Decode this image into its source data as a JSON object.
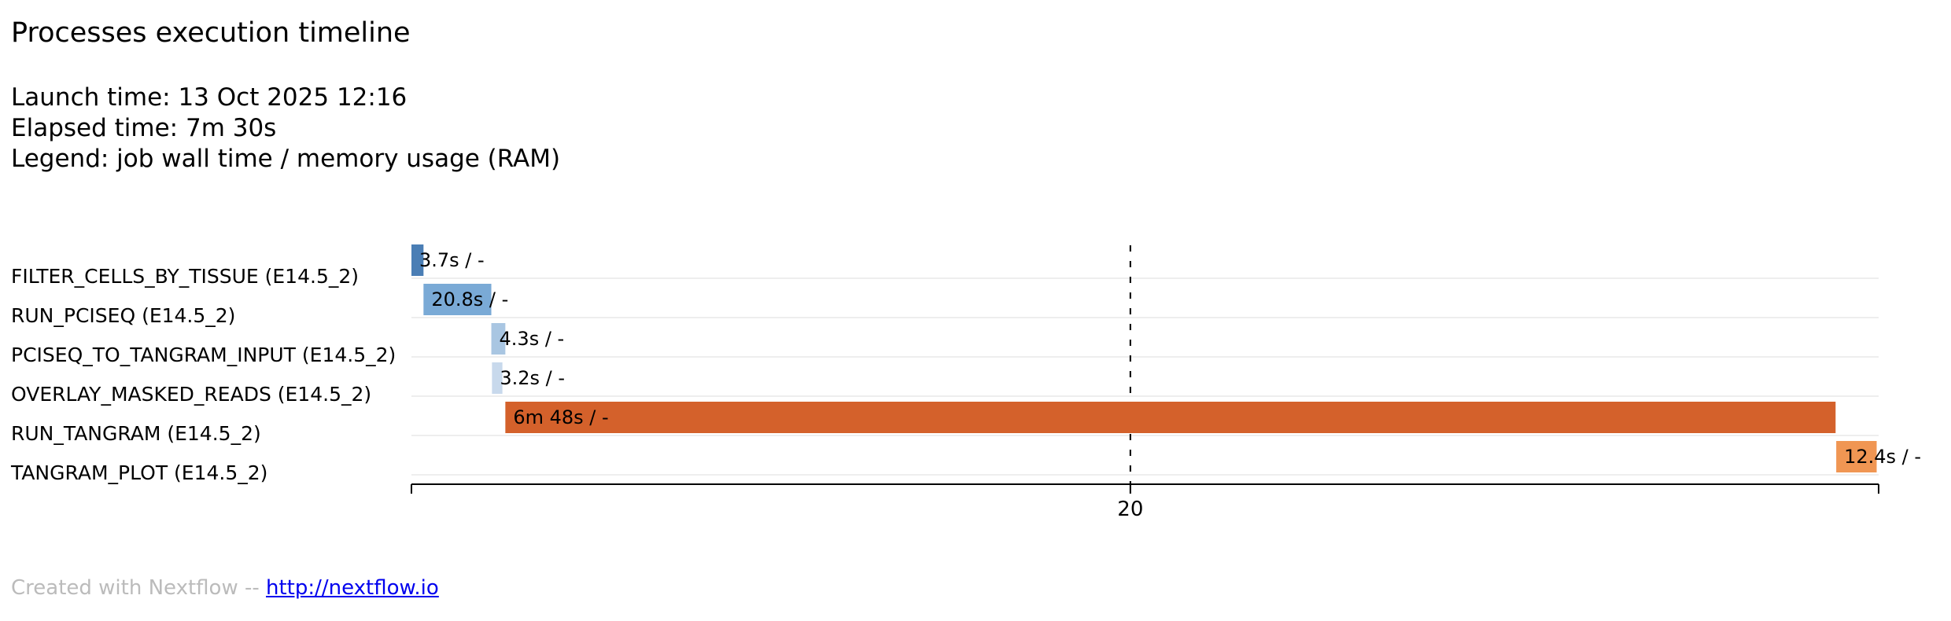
{
  "title": "Processes execution timeline",
  "launch_time": "Launch time: 13 Oct 2025 12:16",
  "elapsed_time": "Elapsed time: 7m 30s",
  "legend": "Legend: job wall time / memory usage (RAM)",
  "footer": {
    "prefix": "Created with Nextflow -- ",
    "link_text": "http://nextflow.io"
  },
  "chart_data": {
    "type": "bar",
    "orientation": "horizontal-timeline",
    "x_unit": "s",
    "xlim": [
      0,
      450
    ],
    "x_ticks": [
      {
        "value": 220.5,
        "label": "20"
      }
    ],
    "grid": false,
    "rows": [
      {
        "name": "FILTER_CELLS_BY_TISSUE (E14.5_2)",
        "start": 0.0,
        "duration": 3.7,
        "label": "3.7s / -",
        "color": "#4a7eb5"
      },
      {
        "name": "RUN_PCISEQ (E14.5_2)",
        "start": 3.7,
        "duration": 20.8,
        "label": "20.8s / -",
        "color": "#7aaad6"
      },
      {
        "name": "PCISEQ_TO_TANGRAM_INPUT (E14.5_2)",
        "start": 24.5,
        "duration": 4.3,
        "label": "4.3s / -",
        "color": "#a9c6e2"
      },
      {
        "name": "OVERLAY_MASKED_READS (E14.5_2)",
        "start": 24.7,
        "duration": 3.2,
        "label": "3.2s / -",
        "color": "#c8d9ec"
      },
      {
        "name": "RUN_TANGRAM (E14.5_2)",
        "start": 28.8,
        "duration": 408.0,
        "label": "6m 48s / -",
        "color": "#d4612b"
      },
      {
        "name": "TANGRAM_PLOT (E14.5_2)",
        "start": 437.0,
        "duration": 12.4,
        "label": "12.4s / -",
        "color": "#f09653"
      }
    ]
  }
}
